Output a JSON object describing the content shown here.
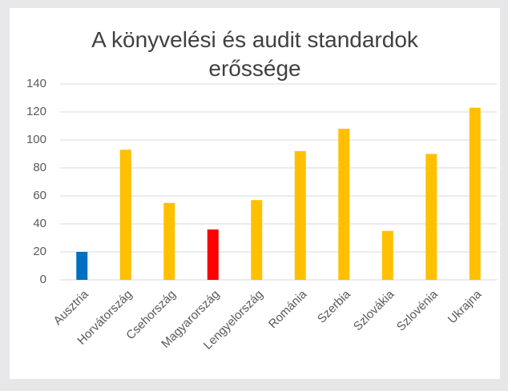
{
  "chart_data": {
    "type": "bar",
    "title": "A könyvelési és audit standardok erőssége",
    "categories": [
      "Ausztria",
      "Horvátország",
      "Csehország",
      "Magyarország",
      "Lengyelország",
      "Románia",
      "Szerbia",
      "Szlovákia",
      "Szlovénia",
      "Ukrajna"
    ],
    "values": [
      20,
      93,
      55,
      36,
      57,
      92,
      108,
      35,
      90,
      123
    ],
    "colors": [
      "#0070c0",
      "#ffc000",
      "#ffc000",
      "#ff0000",
      "#ffc000",
      "#ffc000",
      "#ffc000",
      "#ffc000",
      "#ffc000",
      "#ffc000"
    ],
    "ylim": [
      0,
      140
    ],
    "yticks": [
      0,
      20,
      40,
      60,
      80,
      100,
      120,
      140
    ],
    "grid": true
  }
}
